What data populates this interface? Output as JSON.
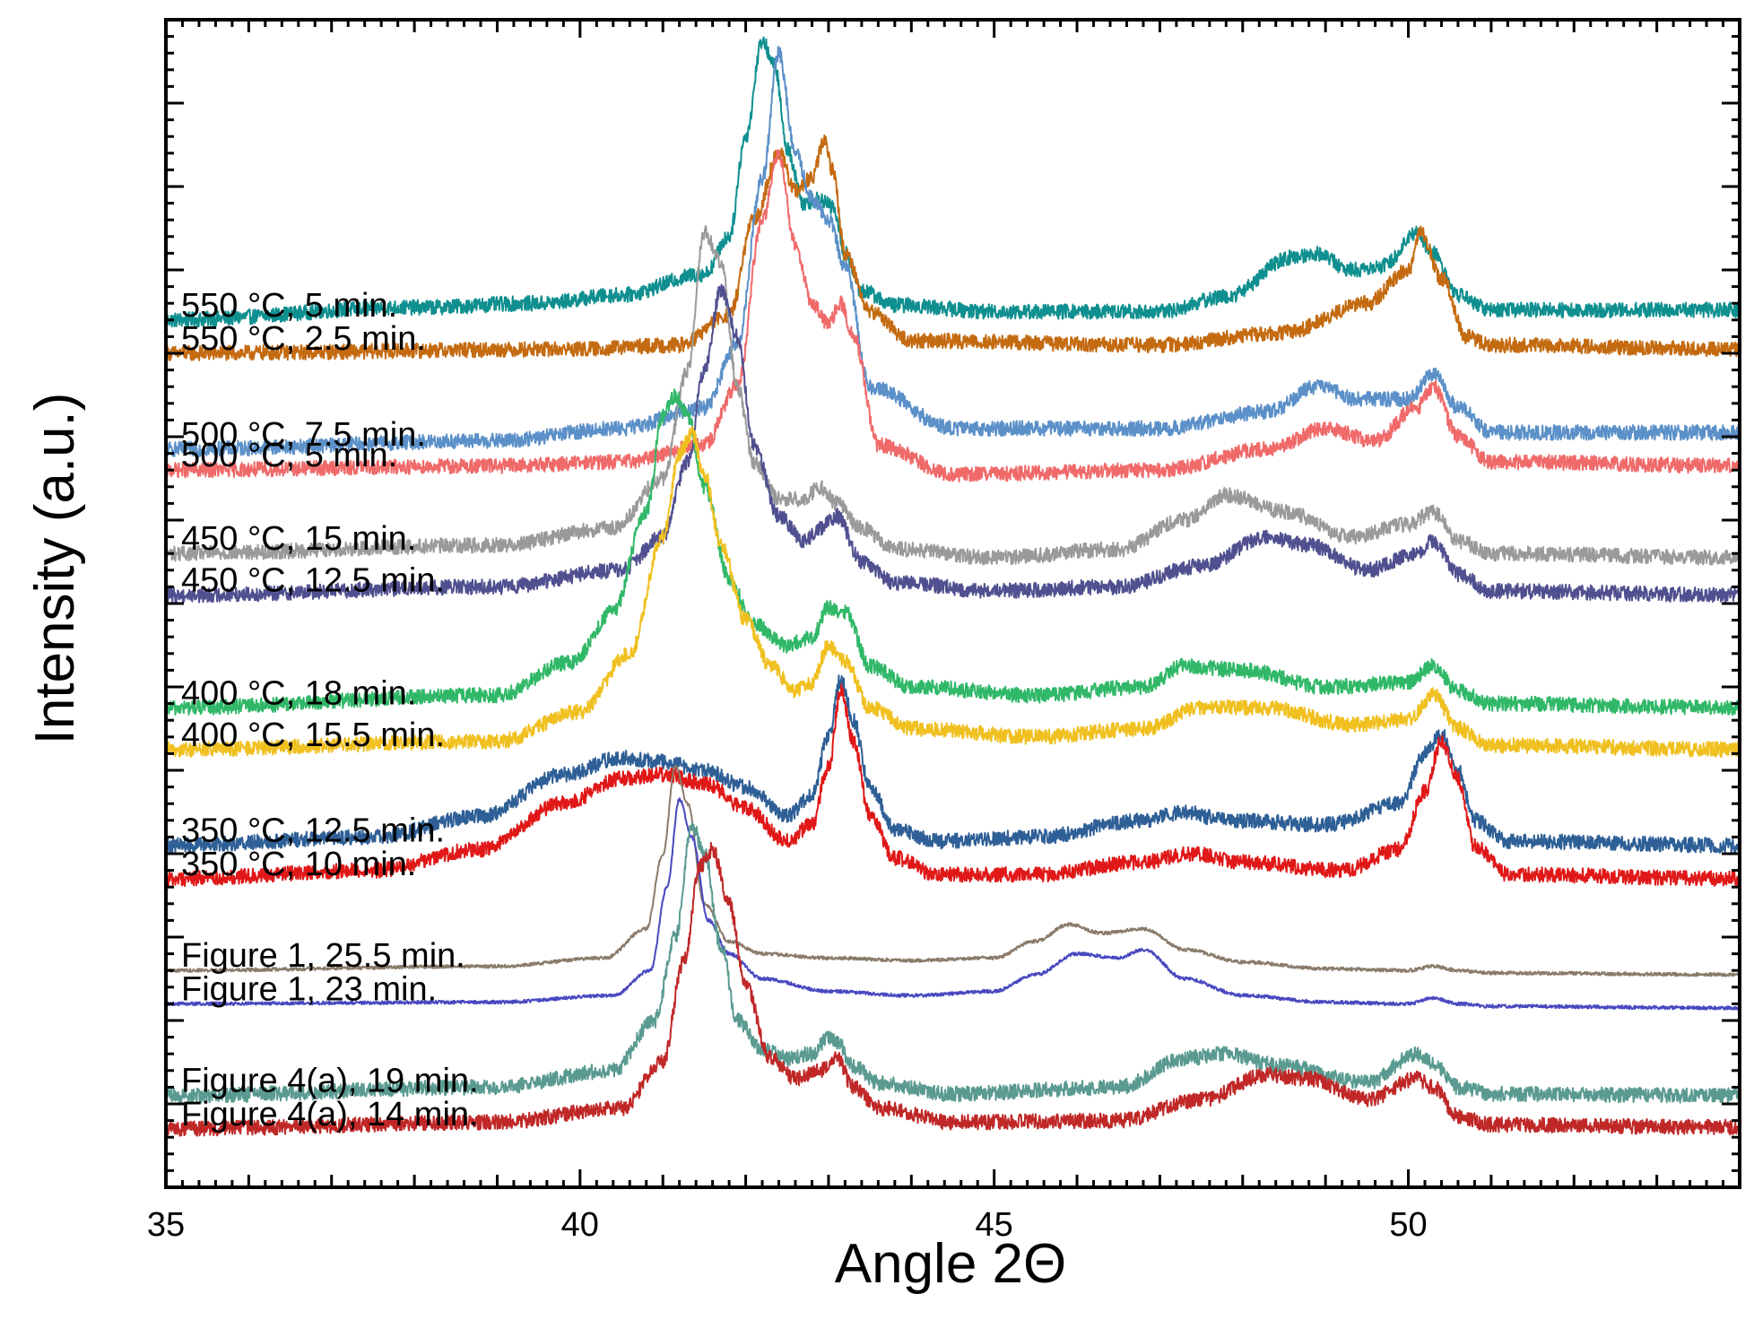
{
  "chart_data": {
    "type": "line",
    "title": "",
    "xlabel": "Angle 2Θ",
    "ylabel": "Intensity (a.u.)",
    "xlim": [
      35,
      54
    ],
    "ylim": [
      0,
      14
    ],
    "x_ticks": [
      35,
      40,
      45,
      50
    ],
    "x_tick_labels": [
      "35",
      "40",
      "45",
      "50"
    ],
    "y_tick_labels_shown": false,
    "grid": false,
    "series": [
      {
        "name": "550 °C, 5 min.",
        "color": "#0f8f8f",
        "x": [
          35,
          38,
          39.5,
          40.5,
          41.5,
          41.8,
          42.0,
          42.2,
          42.35,
          42.5,
          42.7,
          42.9,
          43.05,
          43.2,
          43.4,
          43.8,
          45,
          47,
          47.8,
          48.6,
          48.9,
          49.3,
          49.7,
          50.1,
          50.3,
          50.6,
          51,
          54
        ],
        "y": [
          10.4,
          10.55,
          10.6,
          10.7,
          10.95,
          11.4,
          12.6,
          13.75,
          13.45,
          12.45,
          11.8,
          11.85,
          11.75,
          11.2,
          10.75,
          10.58,
          10.5,
          10.5,
          10.68,
          11.15,
          11.2,
          11.0,
          11.05,
          11.45,
          11.2,
          10.7,
          10.52,
          10.52
        ]
      },
      {
        "name": "550 °C, 2.5 min.",
        "color": "#c46a10",
        "x": [
          35,
          40,
          41.2,
          41.8,
          42.1,
          42.4,
          42.6,
          42.8,
          42.95,
          43.05,
          43.2,
          43.5,
          44,
          47,
          48.5,
          49.5,
          50.0,
          50.15,
          50.4,
          50.7,
          51,
          54
        ],
        "y": [
          10.0,
          10.05,
          10.1,
          10.45,
          11.6,
          12.4,
          11.95,
          12.1,
          12.55,
          12.2,
          11.2,
          10.5,
          10.15,
          10.1,
          10.25,
          10.6,
          11.0,
          11.45,
          10.9,
          10.2,
          10.1,
          10.05
        ]
      },
      {
        "name": "500 °C, 7.5 min.",
        "color": "#5b90c8",
        "x": [
          35,
          39,
          40.5,
          41.5,
          41.9,
          42.2,
          42.4,
          42.6,
          42.8,
          43.0,
          43.2,
          43.5,
          44.5,
          47,
          48.3,
          48.9,
          49.4,
          50.0,
          50.3,
          50.6,
          51,
          54
        ],
        "y": [
          8.85,
          8.95,
          9.1,
          9.35,
          10.1,
          12.1,
          13.6,
          12.4,
          11.85,
          11.6,
          11.05,
          9.6,
          9.1,
          9.1,
          9.3,
          9.6,
          9.45,
          9.45,
          9.75,
          9.35,
          9.05,
          9.05
        ]
      },
      {
        "name": "500 °C, 5 min.",
        "color": "#f06a6a",
        "x": [
          35,
          39,
          40.5,
          41.5,
          41.9,
          42.2,
          42.4,
          42.6,
          42.8,
          43.0,
          43.15,
          43.3,
          43.6,
          44.5,
          47,
          48.3,
          49.0,
          49.6,
          50.1,
          50.3,
          50.6,
          51,
          54
        ],
        "y": [
          8.6,
          8.65,
          8.7,
          8.9,
          9.6,
          11.6,
          12.4,
          11.3,
          10.6,
          10.35,
          10.6,
          10.2,
          8.9,
          8.55,
          8.6,
          8.85,
          9.1,
          8.95,
          9.35,
          9.6,
          9.0,
          8.7,
          8.65
        ]
      },
      {
        "name": "450 °C, 15 min.",
        "color": "#9a9a9a",
        "x": [
          35,
          39,
          40.4,
          41.0,
          41.3,
          41.5,
          41.7,
          41.9,
          42.1,
          42.4,
          42.7,
          42.9,
          43.1,
          43.4,
          43.8,
          45,
          46.5,
          47.3,
          47.8,
          48.5,
          49.3,
          50.0,
          50.3,
          50.6,
          51,
          54
        ],
        "y": [
          7.6,
          7.7,
          7.9,
          8.5,
          9.8,
          11.45,
          11.1,
          9.6,
          8.7,
          8.25,
          8.25,
          8.4,
          8.2,
          7.9,
          7.65,
          7.55,
          7.65,
          8.0,
          8.3,
          8.1,
          7.8,
          7.95,
          8.1,
          7.75,
          7.6,
          7.55
        ]
      },
      {
        "name": "450 °C, 12.5 min.",
        "color": "#505090",
        "x": [
          35,
          39,
          40.5,
          41.0,
          41.3,
          41.5,
          41.7,
          41.9,
          42.1,
          42.4,
          42.7,
          42.9,
          43.1,
          43.4,
          43.8,
          45,
          46.5,
          47.5,
          48.3,
          48.8,
          49.5,
          50.1,
          50.3,
          50.6,
          51,
          54
        ],
        "y": [
          7.1,
          7.2,
          7.4,
          7.8,
          8.7,
          9.8,
          10.75,
          10.2,
          8.9,
          8.05,
          7.75,
          7.9,
          8.05,
          7.5,
          7.25,
          7.15,
          7.2,
          7.45,
          7.8,
          7.7,
          7.4,
          7.6,
          7.75,
          7.35,
          7.15,
          7.1
        ]
      },
      {
        "name": "400 °C, 18 min.",
        "color": "#30b868",
        "x": [
          35,
          39,
          39.9,
          40.4,
          40.8,
          41.0,
          41.15,
          41.3,
          41.5,
          41.8,
          42.1,
          42.5,
          42.8,
          43.0,
          43.2,
          43.5,
          44,
          45.5,
          46.8,
          47.3,
          48.0,
          49.0,
          50.0,
          50.3,
          50.6,
          51,
          54
        ],
        "y": [
          5.75,
          5.9,
          6.3,
          6.9,
          8.1,
          9.25,
          9.5,
          9.25,
          8.4,
          7.3,
          6.75,
          6.5,
          6.6,
          6.95,
          6.9,
          6.25,
          6.0,
          5.9,
          6.0,
          6.25,
          6.2,
          6.0,
          6.05,
          6.25,
          5.95,
          5.8,
          5.75
        ]
      },
      {
        "name": "400 °C, 15.5 min.",
        "color": "#f0c020",
        "x": [
          35,
          39,
          40.0,
          40.6,
          41.0,
          41.2,
          41.35,
          41.5,
          41.7,
          42.0,
          42.3,
          42.6,
          42.8,
          43.0,
          43.2,
          43.5,
          44,
          45.5,
          46.8,
          47.5,
          48.3,
          49.3,
          50.0,
          50.3,
          50.6,
          51,
          54
        ],
        "y": [
          5.25,
          5.35,
          5.7,
          6.4,
          7.8,
          8.8,
          9.05,
          8.55,
          7.7,
          6.8,
          6.25,
          5.95,
          6.05,
          6.5,
          6.3,
          5.75,
          5.5,
          5.4,
          5.5,
          5.75,
          5.75,
          5.55,
          5.6,
          5.9,
          5.5,
          5.3,
          5.25
        ]
      },
      {
        "name": "350 °C, 12.5 min.",
        "color": "#2e5f96",
        "x": [
          35,
          37.5,
          38.8,
          39.8,
          40.5,
          41.0,
          41.5,
          42.0,
          42.5,
          42.8,
          43.0,
          43.15,
          43.3,
          43.5,
          43.8,
          44.3,
          45.5,
          46.8,
          47.3,
          47.8,
          49.0,
          49.9,
          50.2,
          50.4,
          50.6,
          50.8,
          51.2,
          54
        ],
        "y": [
          4.1,
          4.2,
          4.45,
          4.95,
          5.15,
          5.1,
          5.0,
          4.8,
          4.45,
          4.7,
          5.4,
          6.1,
          5.6,
          4.8,
          4.3,
          4.15,
          4.2,
          4.4,
          4.5,
          4.4,
          4.35,
          4.6,
          5.2,
          5.45,
          5.0,
          4.4,
          4.15,
          4.1
        ]
      },
      {
        "name": "350 °C, 10 min.",
        "color": "#e01818",
        "x": [
          35,
          37.5,
          38.8,
          39.8,
          40.5,
          41.0,
          41.5,
          42.0,
          42.5,
          42.8,
          43.0,
          43.15,
          43.3,
          43.5,
          43.8,
          44.3,
          45.5,
          46.8,
          47.4,
          48.0,
          49.2,
          49.9,
          50.2,
          50.4,
          50.6,
          50.8,
          51.2,
          54
        ],
        "y": [
          3.7,
          3.8,
          4.05,
          4.6,
          4.9,
          4.95,
          4.85,
          4.55,
          4.15,
          4.35,
          5.05,
          5.95,
          5.35,
          4.45,
          3.95,
          3.75,
          3.75,
          3.9,
          4.0,
          3.9,
          3.8,
          4.05,
          4.75,
          5.35,
          4.9,
          4.1,
          3.75,
          3.7
        ]
      },
      {
        "name": "Figure 1, 25.5 min.",
        "color": "#8a7a6a",
        "x": [
          35,
          39,
          40.3,
          40.8,
          41.0,
          41.15,
          41.3,
          41.5,
          41.8,
          42.2,
          43,
          44,
          45,
          45.5,
          45.9,
          46.3,
          46.8,
          47.3,
          48.0,
          49.0,
          50.0,
          50.3,
          50.6,
          51,
          54
        ],
        "y": [
          2.6,
          2.65,
          2.75,
          3.1,
          4.0,
          5.05,
          4.6,
          3.4,
          2.95,
          2.8,
          2.75,
          2.72,
          2.75,
          2.95,
          3.15,
          3.05,
          3.1,
          2.85,
          2.7,
          2.62,
          2.6,
          2.65,
          2.6,
          2.57,
          2.55
        ]
      },
      {
        "name": "Figure 1, 23 min.",
        "color": "#4848c0",
        "x": [
          35,
          39,
          40.4,
          40.85,
          41.05,
          41.2,
          41.35,
          41.55,
          41.8,
          42.2,
          43,
          44,
          45,
          45.5,
          46.0,
          46.5,
          46.8,
          47.3,
          48.0,
          49.0,
          50.0,
          50.3,
          50.6,
          51,
          54
        ],
        "y": [
          2.2,
          2.22,
          2.3,
          2.6,
          3.6,
          4.65,
          4.2,
          3.2,
          2.8,
          2.5,
          2.35,
          2.3,
          2.35,
          2.55,
          2.8,
          2.75,
          2.85,
          2.5,
          2.3,
          2.22,
          2.2,
          2.27,
          2.2,
          2.17,
          2.15
        ]
      },
      {
        "name": "Figure 4(a), 19 min.",
        "color": "#5a9a90",
        "x": [
          35,
          39,
          40.4,
          40.9,
          41.15,
          41.35,
          41.5,
          41.7,
          41.9,
          42.2,
          42.5,
          42.8,
          43.0,
          43.1,
          43.3,
          43.6,
          44.5,
          46.5,
          47.3,
          47.8,
          48.5,
          49.5,
          50.1,
          50.3,
          50.6,
          51,
          54
        ],
        "y": [
          1.1,
          1.2,
          1.4,
          2.0,
          3.0,
          4.35,
          4.0,
          2.9,
          2.0,
          1.65,
          1.55,
          1.6,
          1.8,
          1.75,
          1.45,
          1.25,
          1.12,
          1.2,
          1.55,
          1.6,
          1.45,
          1.25,
          1.6,
          1.5,
          1.2,
          1.12,
          1.1
        ]
      },
      {
        "name": "Figure 4(a), 14 min.",
        "color": "#c02828",
        "x": [
          35,
          39,
          40.5,
          41.0,
          41.25,
          41.45,
          41.6,
          41.8,
          42.0,
          42.3,
          42.6,
          42.9,
          43.1,
          43.3,
          43.6,
          44.5,
          46.5,
          47.5,
          48.3,
          48.8,
          49.5,
          50.1,
          50.3,
          50.6,
          51,
          54
        ],
        "y": [
          0.7,
          0.78,
          0.95,
          1.5,
          2.7,
          3.85,
          4.05,
          3.4,
          2.4,
          1.55,
          1.3,
          1.4,
          1.55,
          1.2,
          0.95,
          0.78,
          0.8,
          1.05,
          1.35,
          1.3,
          1.05,
          1.3,
          1.2,
          0.85,
          0.75,
          0.72
        ]
      }
    ]
  }
}
